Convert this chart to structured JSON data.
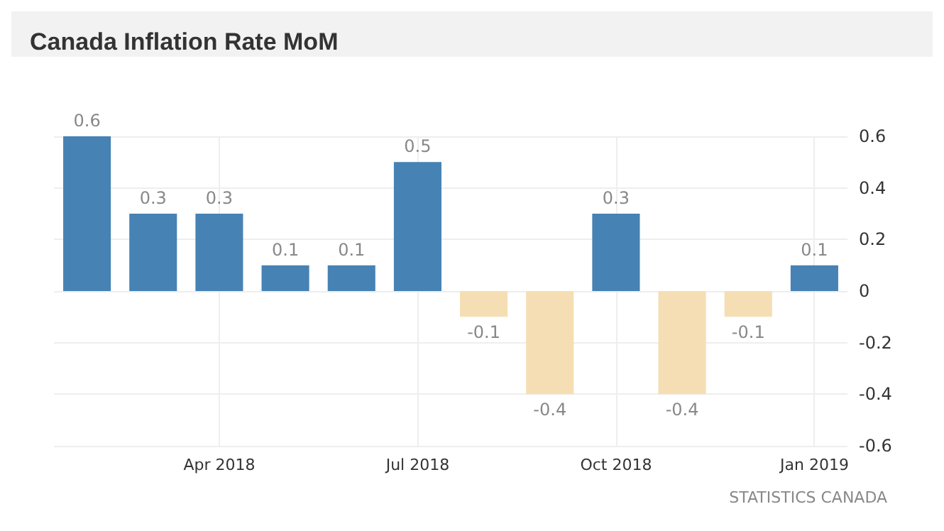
{
  "chart_data": {
    "type": "bar",
    "title": "Canada Inflation Rate MoM",
    "categories": [
      null,
      null,
      "Apr 2018",
      null,
      null,
      "Jul 2018",
      null,
      null,
      "Oct 2018",
      null,
      null,
      "Jan 2019"
    ],
    "values": [
      0.6,
      0.3,
      0.3,
      0.1,
      0.1,
      0.5,
      -0.1,
      -0.4,
      0.3,
      -0.4,
      -0.1,
      0.1
    ],
    "colors": [
      "#4682b4",
      "#4682b4",
      "#4682b4",
      "#4682b4",
      "#4682b4",
      "#4682b4",
      "#f5deb3",
      "#f5deb3",
      "#4682b4",
      "#f5deb3",
      "#f5deb3",
      "#4682b4"
    ],
    "ylim": [
      -0.6,
      0.6
    ],
    "yticks": [
      -0.6,
      -0.4,
      -0.2,
      0,
      0.2,
      0.4,
      0.6
    ],
    "grid": true,
    "data_labels": true,
    "annotations": [
      "STATISTICS CANADA"
    ]
  }
}
